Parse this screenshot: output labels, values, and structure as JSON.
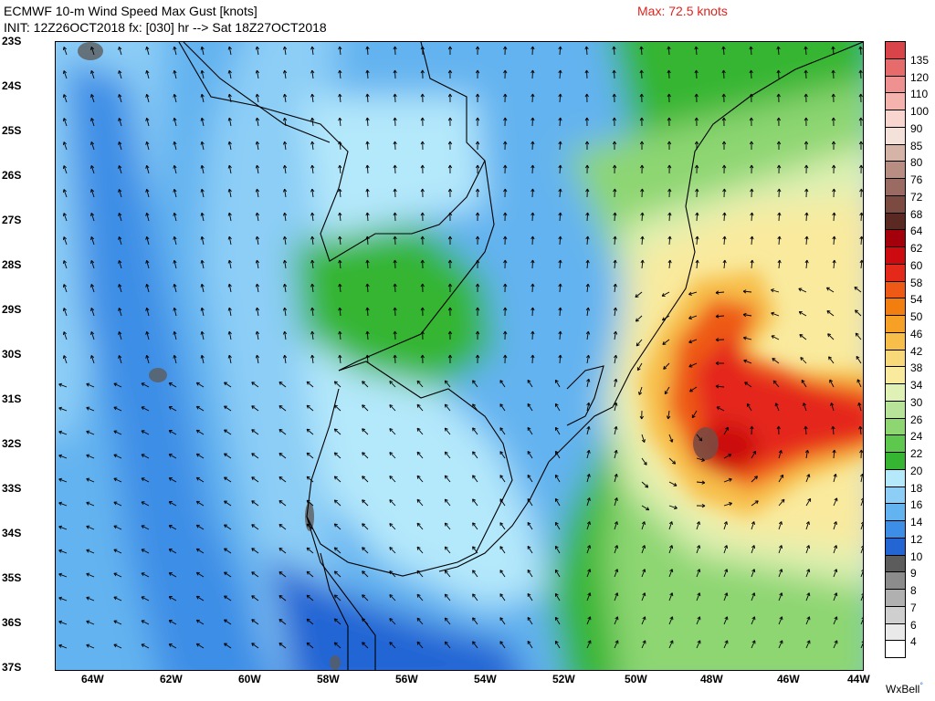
{
  "header": {
    "title_line1": "ECMWF 10-m Wind Speed Max Gust [knots]",
    "title_line2": "INIT: 12Z26OCT2018 fx: [030] hr --> Sat 18Z27OCT2018",
    "max_label": "Max: 72.5 knots"
  },
  "axes": {
    "lat_labels": [
      "23S",
      "24S",
      "25S",
      "26S",
      "27S",
      "28S",
      "29S",
      "30S",
      "31S",
      "32S",
      "33S",
      "34S",
      "35S",
      "36S",
      "37S"
    ],
    "lon_labels": [
      "64W",
      "62W",
      "60W",
      "58W",
      "56W",
      "54W",
      "52W",
      "50W",
      "48W",
      "46W",
      "44W"
    ]
  },
  "colorbar": {
    "labels": [
      "135",
      "120",
      "110",
      "100",
      "90",
      "85",
      "80",
      "76",
      "72",
      "68",
      "64",
      "62",
      "60",
      "58",
      "54",
      "50",
      "46",
      "42",
      "38",
      "34",
      "30",
      "26",
      "24",
      "22",
      "20",
      "18",
      "16",
      "14",
      "12",
      "10",
      "9",
      "8",
      "7",
      "6",
      "4"
    ],
    "colors": [
      "#d9444a",
      "#e86b6b",
      "#ef9190",
      "#f5b3ae",
      "#f8d5cf",
      "#f4e2da",
      "#d6b3a7",
      "#b88e83",
      "#9a6b62",
      "#7b4a40",
      "#5a2a22",
      "#a4000c",
      "#cc0a10",
      "#e4281a",
      "#ee5a16",
      "#f37e10",
      "#f7a026",
      "#f7be4a",
      "#f8d97a",
      "#f9ea9e",
      "#dff1b5",
      "#b8e49a",
      "#8dd672",
      "#5ec84e",
      "#35b531",
      "#b4e8fb",
      "#8ccef6",
      "#63b3f0",
      "#3d8ee6",
      "#2465d4",
      "#5c5c5c",
      "#8c8c8c",
      "#b0b0b0",
      "#cfcfcf",
      "#e9e9e9",
      "#ffffff"
    ]
  },
  "brand": "WxBell"
}
